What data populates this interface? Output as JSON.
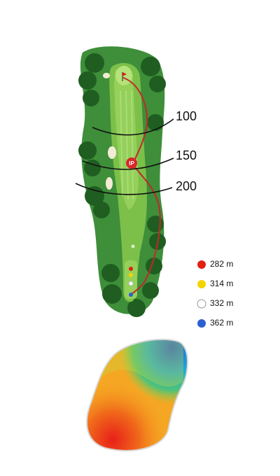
{
  "distance_markers": [
    {
      "label": "100"
    },
    {
      "label": "150"
    },
    {
      "label": "200"
    }
  ],
  "ip_marker": "IP",
  "tees": [
    {
      "label": "282 m",
      "color": "#e2200f"
    },
    {
      "label": "314 m",
      "color": "#f2d400"
    },
    {
      "label": "332 m",
      "color": "#ffffff"
    },
    {
      "label": "362 m",
      "color": "#2b5fd3"
    }
  ]
}
